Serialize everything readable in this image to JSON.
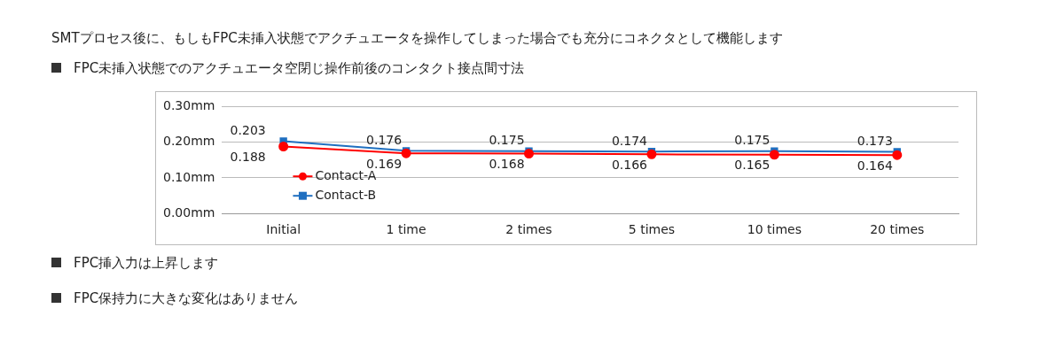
{
  "chart_data": {
    "type": "line",
    "title": "SMTプロセス後に、もしもFPC未挿入状態でアクチュエータを操作してしまった場合でも充分にコネクタとして機能します",
    "subtitle": "FPC未挿入状態でのアクチュエータ空閉じ操作前後のコンタクト接点間寸法",
    "categories": [
      "Initial",
      "1 time",
      "2 times",
      "5 times",
      "10 times",
      "20 times"
    ],
    "series": [
      {
        "name": "Contact-A",
        "color": "#ff0000",
        "marker": "circle",
        "values": [
          0.188,
          0.169,
          0.168,
          0.166,
          0.165,
          0.164
        ]
      },
      {
        "name": "Contact-B",
        "color": "#1f6fc0",
        "marker": "square",
        "values": [
          0.203,
          0.176,
          0.175,
          0.174,
          0.175,
          0.173
        ]
      }
    ],
    "ylim": [
      0,
      0.3
    ],
    "yticks": [
      {
        "value": 0,
        "label": "0.00mm"
      },
      {
        "value": 0.1,
        "label": "0.10mm"
      },
      {
        "value": 0.2,
        "label": "0.20mm"
      },
      {
        "value": 0.3,
        "label": "0.30mm"
      }
    ],
    "grid": "y",
    "legend": "bottom left",
    "data_labels": true,
    "annotations": [
      "FPC挿入力は上昇します",
      "FPC保持力に大きな変化はありません"
    ]
  }
}
